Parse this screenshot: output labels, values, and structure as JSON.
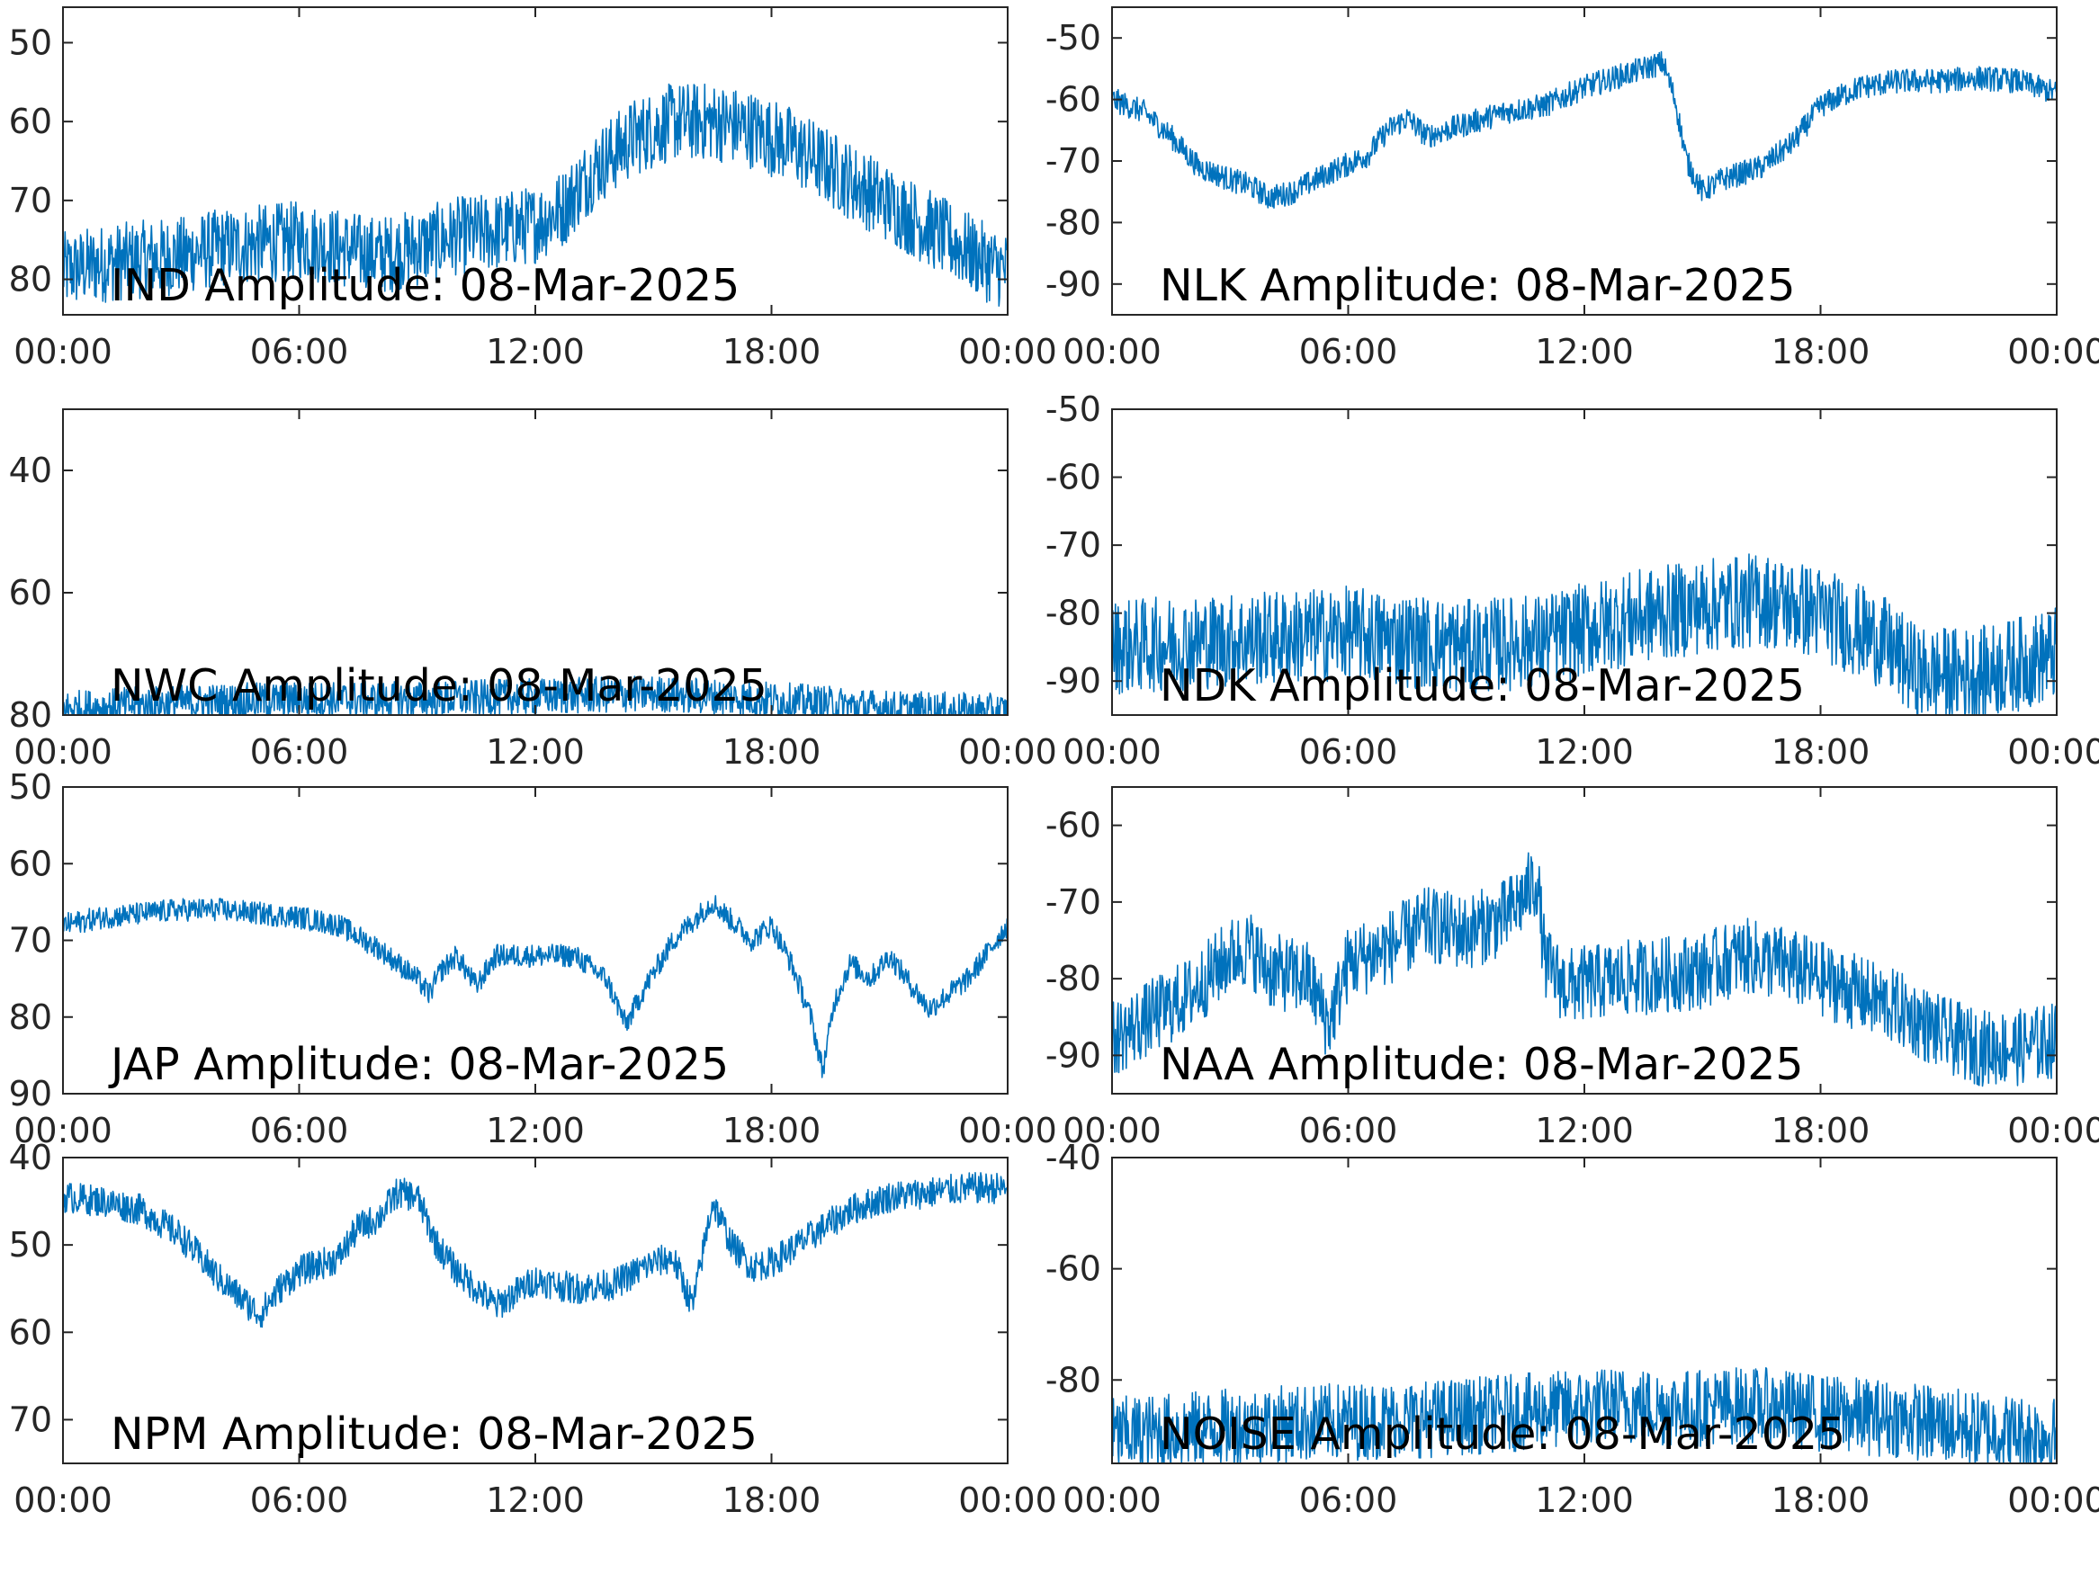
{
  "series_color": "#0072BD",
  "chart_data": [
    {
      "type": "line",
      "label": "IND Amplitude: 08-Mar-2025",
      "xlim": [
        0,
        24
      ],
      "ylim": [
        -84.5,
        -45.5
      ],
      "yticks": [
        -50,
        -60,
        -70,
        -80
      ],
      "ytick_labels": [
        "50",
        "60",
        "70",
        "80"
      ],
      "xticks": [
        0,
        6,
        12,
        18,
        24
      ],
      "xtick_labels": [
        "00:00",
        "06:00",
        "12:00",
        "18:00",
        "00:00"
      ],
      "noise": 5,
      "envelope": {
        "x": [
          0,
          1,
          2,
          3,
          4,
          5,
          6,
          7,
          8,
          9,
          10,
          11,
          12,
          12.7,
          13.5,
          14.5,
          15.5,
          16.5,
          17.5,
          18.5,
          19.5,
          20.5,
          21.5,
          22.5,
          23.5,
          24
        ],
        "y": [
          -79,
          -78,
          -77.5,
          -77,
          -76,
          -75.5,
          -75,
          -76,
          -77,
          -76,
          -74.5,
          -74,
          -73,
          -71,
          -66,
          -62,
          -60,
          -60,
          -61,
          -63,
          -66,
          -69,
          -72,
          -75,
          -78,
          -79
        ]
      }
    },
    {
      "type": "line",
      "label": "NLK Amplitude: 08-Mar-2025",
      "xlim": [
        0,
        24
      ],
      "ylim": [
        -95,
        -45
      ],
      "yticks": [
        -50,
        -60,
        -70,
        -80,
        -90
      ],
      "ytick_labels": [
        "-50",
        "-60",
        "-70",
        "-80",
        "-90"
      ],
      "xticks": [
        0,
        6,
        12,
        18,
        24
      ],
      "xtick_labels": [
        "00:00",
        "06:00",
        "12:00",
        "18:00",
        "00:00"
      ],
      "noise": 2,
      "envelope": {
        "x": [
          0,
          0.8,
          1.5,
          2.2,
          3,
          3.5,
          4,
          4.6,
          5.5,
          6.5,
          7,
          7.5,
          8,
          9,
          10,
          11,
          12,
          13,
          13.5,
          14,
          14.3,
          14.6,
          15,
          15.5,
          16.5,
          17.3,
          18,
          19,
          20,
          21,
          22,
          23,
          24
        ],
        "y": [
          -60,
          -62,
          -66,
          -71,
          -73,
          -74,
          -76,
          -75,
          -72,
          -69,
          -65,
          -63,
          -66,
          -64,
          -62,
          -61,
          -58,
          -56,
          -55,
          -54,
          -60,
          -70,
          -75,
          -73,
          -71,
          -67,
          -61,
          -58,
          -57,
          -57,
          -56.5,
          -57,
          -59
        ]
      }
    },
    {
      "type": "line",
      "label": "NWC Amplitude: 08-Mar-2025",
      "xlim": [
        0,
        24
      ],
      "ylim": [
        -80,
        -30
      ],
      "yticks": [
        -40,
        -60,
        -80
      ],
      "ytick_labels": [
        "40",
        "60",
        "80"
      ],
      "xticks": [
        0,
        6,
        12,
        18,
        24
      ],
      "xtick_labels": [
        "00:00",
        "06:00",
        "12:00",
        "18:00",
        "00:00"
      ],
      "noise": 3,
      "envelope": {
        "x": [
          0,
          3,
          6,
          9,
          12,
          15,
          18,
          21,
          24
        ],
        "y": [
          -79,
          -78,
          -77.5,
          -77.5,
          -77,
          -76.5,
          -77.5,
          -79,
          -79.5
        ]
      }
    },
    {
      "type": "line",
      "label": "NDK Amplitude: 08-Mar-2025",
      "xlim": [
        0,
        24
      ],
      "ylim": [
        -95,
        -50
      ],
      "yticks": [
        -50,
        -60,
        -70,
        -80,
        -90
      ],
      "ytick_labels": [
        "-50",
        "-60",
        "-70",
        "-80",
        "-90"
      ],
      "xticks": [
        0,
        6,
        12,
        18,
        24
      ],
      "xtick_labels": [
        "00:00",
        "06:00",
        "12:00",
        "18:00",
        "00:00"
      ],
      "noise": 7,
      "envelope": {
        "x": [
          0,
          3,
          6,
          9,
          11,
          13,
          15,
          16.5,
          18,
          19.5,
          20.5,
          22,
          24
        ],
        "y": [
          -85,
          -84,
          -83,
          -85,
          -84,
          -81,
          -79,
          -78,
          -80,
          -84,
          -89,
          -89,
          -86
        ]
      }
    },
    {
      "type": "line",
      "label": "JAP Amplitude: 08-Mar-2025",
      "xlim": [
        0,
        24
      ],
      "ylim": [
        -90,
        -50
      ],
      "yticks": [
        -50,
        -60,
        -70,
        -80,
        -90
      ],
      "ytick_labels": [
        "50",
        "60",
        "70",
        "80",
        "90"
      ],
      "xticks": [
        0,
        6,
        12,
        18,
        24
      ],
      "xtick_labels": [
        "00:00",
        "06:00",
        "12:00",
        "18:00",
        "00:00"
      ],
      "noise": 1.5,
      "envelope": {
        "x": [
          0,
          1,
          2,
          3,
          4,
          5,
          6,
          7,
          8,
          9,
          9.3,
          9.6,
          10,
          10.5,
          11,
          12,
          13,
          13.8,
          14.3,
          14.8,
          15.5,
          16.5,
          17.5,
          18,
          18.5,
          19,
          19.3,
          19.6,
          20,
          20.5,
          21,
          22,
          23,
          24
        ],
        "y": [
          -68,
          -67,
          -66.5,
          -66,
          -66,
          -66.5,
          -67,
          -68,
          -71,
          -75,
          -77,
          -74,
          -72,
          -76,
          -72,
          -72,
          -72,
          -75,
          -81,
          -76,
          -70,
          -65,
          -70,
          -68,
          -73,
          -80,
          -87,
          -78,
          -73,
          -75,
          -72,
          -79,
          -75,
          -68
        ]
      }
    },
    {
      "type": "line",
      "label": "NAA Amplitude: 08-Mar-2025",
      "xlim": [
        0,
        24
      ],
      "ylim": [
        -95,
        -55
      ],
      "yticks": [
        -60,
        -70,
        -80,
        -90
      ],
      "ytick_labels": [
        "-60",
        "-70",
        "-80",
        "-90"
      ],
      "xticks": [
        0,
        6,
        12,
        18,
        24
      ],
      "xtick_labels": [
        "00:00",
        "06:00",
        "12:00",
        "18:00",
        "00:00"
      ],
      "noise": 5,
      "envelope": {
        "x": [
          0,
          1,
          2,
          3,
          3.5,
          4,
          5,
          5.5,
          6,
          7,
          8,
          9,
          10,
          10.5,
          10.8,
          11,
          11.5,
          13,
          15,
          16,
          17,
          18,
          19,
          20,
          21,
          22,
          23,
          24
        ],
        "y": [
          -88,
          -85,
          -82,
          -77,
          -76,
          -79,
          -80,
          -86,
          -78,
          -76,
          -73,
          -74,
          -72,
          -69,
          -67,
          -78,
          -81,
          -80,
          -79,
          -77,
          -78,
          -80,
          -82,
          -84,
          -87,
          -89,
          -89,
          -88
        ]
      }
    },
    {
      "type": "line",
      "label": "NPM Amplitude: 08-Mar-2025",
      "xlim": [
        0,
        24
      ],
      "ylim": [
        -75,
        -40
      ],
      "yticks": [
        -40,
        -50,
        -60,
        -70
      ],
      "ytick_labels": [
        "40",
        "50",
        "60",
        "70"
      ],
      "xticks": [
        0,
        6,
        12,
        18,
        24
      ],
      "xtick_labels": [
        "00:00",
        "06:00",
        "12:00",
        "18:00",
        "00:00"
      ],
      "noise": 1.8,
      "envelope": {
        "x": [
          0,
          1,
          2,
          3,
          4,
          5,
          5.5,
          6,
          7,
          7.5,
          8,
          8.5,
          9,
          9.5,
          10,
          10.5,
          11,
          12,
          13,
          14,
          15,
          15.5,
          16,
          16.5,
          17,
          17.5,
          18,
          19,
          20,
          21,
          22,
          23,
          24
        ],
        "y": [
          -44.5,
          -45,
          -46,
          -49,
          -54,
          -58,
          -55,
          -53,
          -51.5,
          -48,
          -47,
          -44,
          -44.5,
          -50,
          -53,
          -55,
          -57,
          -54,
          -55,
          -54.5,
          -52,
          -51.5,
          -57,
          -45,
          -50,
          -52.5,
          -52,
          -49,
          -46,
          -44.5,
          -44,
          -43.5,
          -43.5
        ]
      }
    },
    {
      "type": "line",
      "label": "NOISE Amplitude: 08-Mar-2025",
      "xlim": [
        0,
        24
      ],
      "ylim": [
        -95,
        -40
      ],
      "yticks": [
        -40,
        -60,
        -80
      ],
      "ytick_labels": [
        "-40",
        "-60",
        "-80"
      ],
      "xticks": [
        0,
        6,
        12,
        18,
        24
      ],
      "xtick_labels": [
        "00:00",
        "06:00",
        "12:00",
        "18:00",
        "00:00"
      ],
      "noise": 7,
      "envelope": {
        "x": [
          0,
          2,
          4,
          6,
          8,
          10,
          12,
          13,
          14,
          15,
          16,
          17,
          18,
          20,
          22,
          24
        ],
        "y": [
          -90,
          -89,
          -88,
          -87.5,
          -87,
          -86,
          -85,
          -84.5,
          -85,
          -85,
          -84.5,
          -85,
          -86,
          -87,
          -89,
          -90
        ]
      }
    }
  ]
}
